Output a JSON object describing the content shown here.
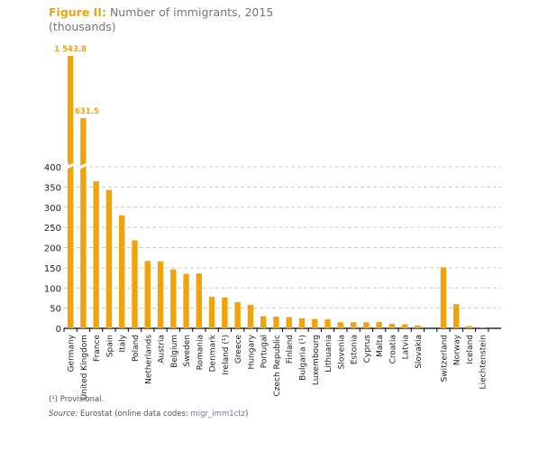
{
  "title": {
    "prefix": "Figure II:",
    "text": "Number of immigrants, 2015",
    "subtitle": "(thousands)"
  },
  "footnotes": {
    "provisional": "(¹) Provisional.",
    "source_label": "Source:",
    "source_text": "Eurostat (online data codes: ",
    "source_code": "migr_imm1ctz",
    "source_close": ")"
  },
  "chart_data": {
    "type": "bar",
    "title": "Number of immigrants, 2015",
    "ylabel": "(thousands)",
    "ylim": [
      0,
      400
    ],
    "axis_break": "above 400",
    "yticks": [
      0,
      50,
      100,
      150,
      200,
      250,
      300,
      350,
      400
    ],
    "grid": true,
    "bar_color": "#f0a30a",
    "categories": [
      "Germany",
      "United Kingdom",
      "France",
      "Spain",
      "Italy",
      "Poland",
      "Netherlands",
      "Austria",
      "Belgium",
      "Sweden",
      "Romania",
      "Denmark",
      "Ireland (¹)",
      "Greece",
      "Hungary",
      "Portugal",
      "Czech Republic",
      "Finland",
      "Bulgaria (¹)",
      "Luxembourg",
      "Lithuania",
      "Slovenia",
      "Estonia",
      "Cyprus",
      "Malta",
      "Croatia",
      "Latvia",
      "Slovakia",
      "",
      "Switzerland",
      "Norway",
      "Iceland",
      "Liechtenstein"
    ],
    "values": [
      1543.8,
      631.5,
      364,
      343,
      280,
      218,
      167,
      166,
      146,
      135,
      136,
      78,
      76,
      65,
      58,
      30,
      29,
      28,
      25,
      23,
      22,
      15,
      15,
      15,
      16,
      11,
      10,
      7,
      null,
      151,
      60,
      5.6,
      0.6
    ],
    "data_labels": {
      "Germany": "1 543.8",
      "United Kingdom": "631.5"
    }
  }
}
